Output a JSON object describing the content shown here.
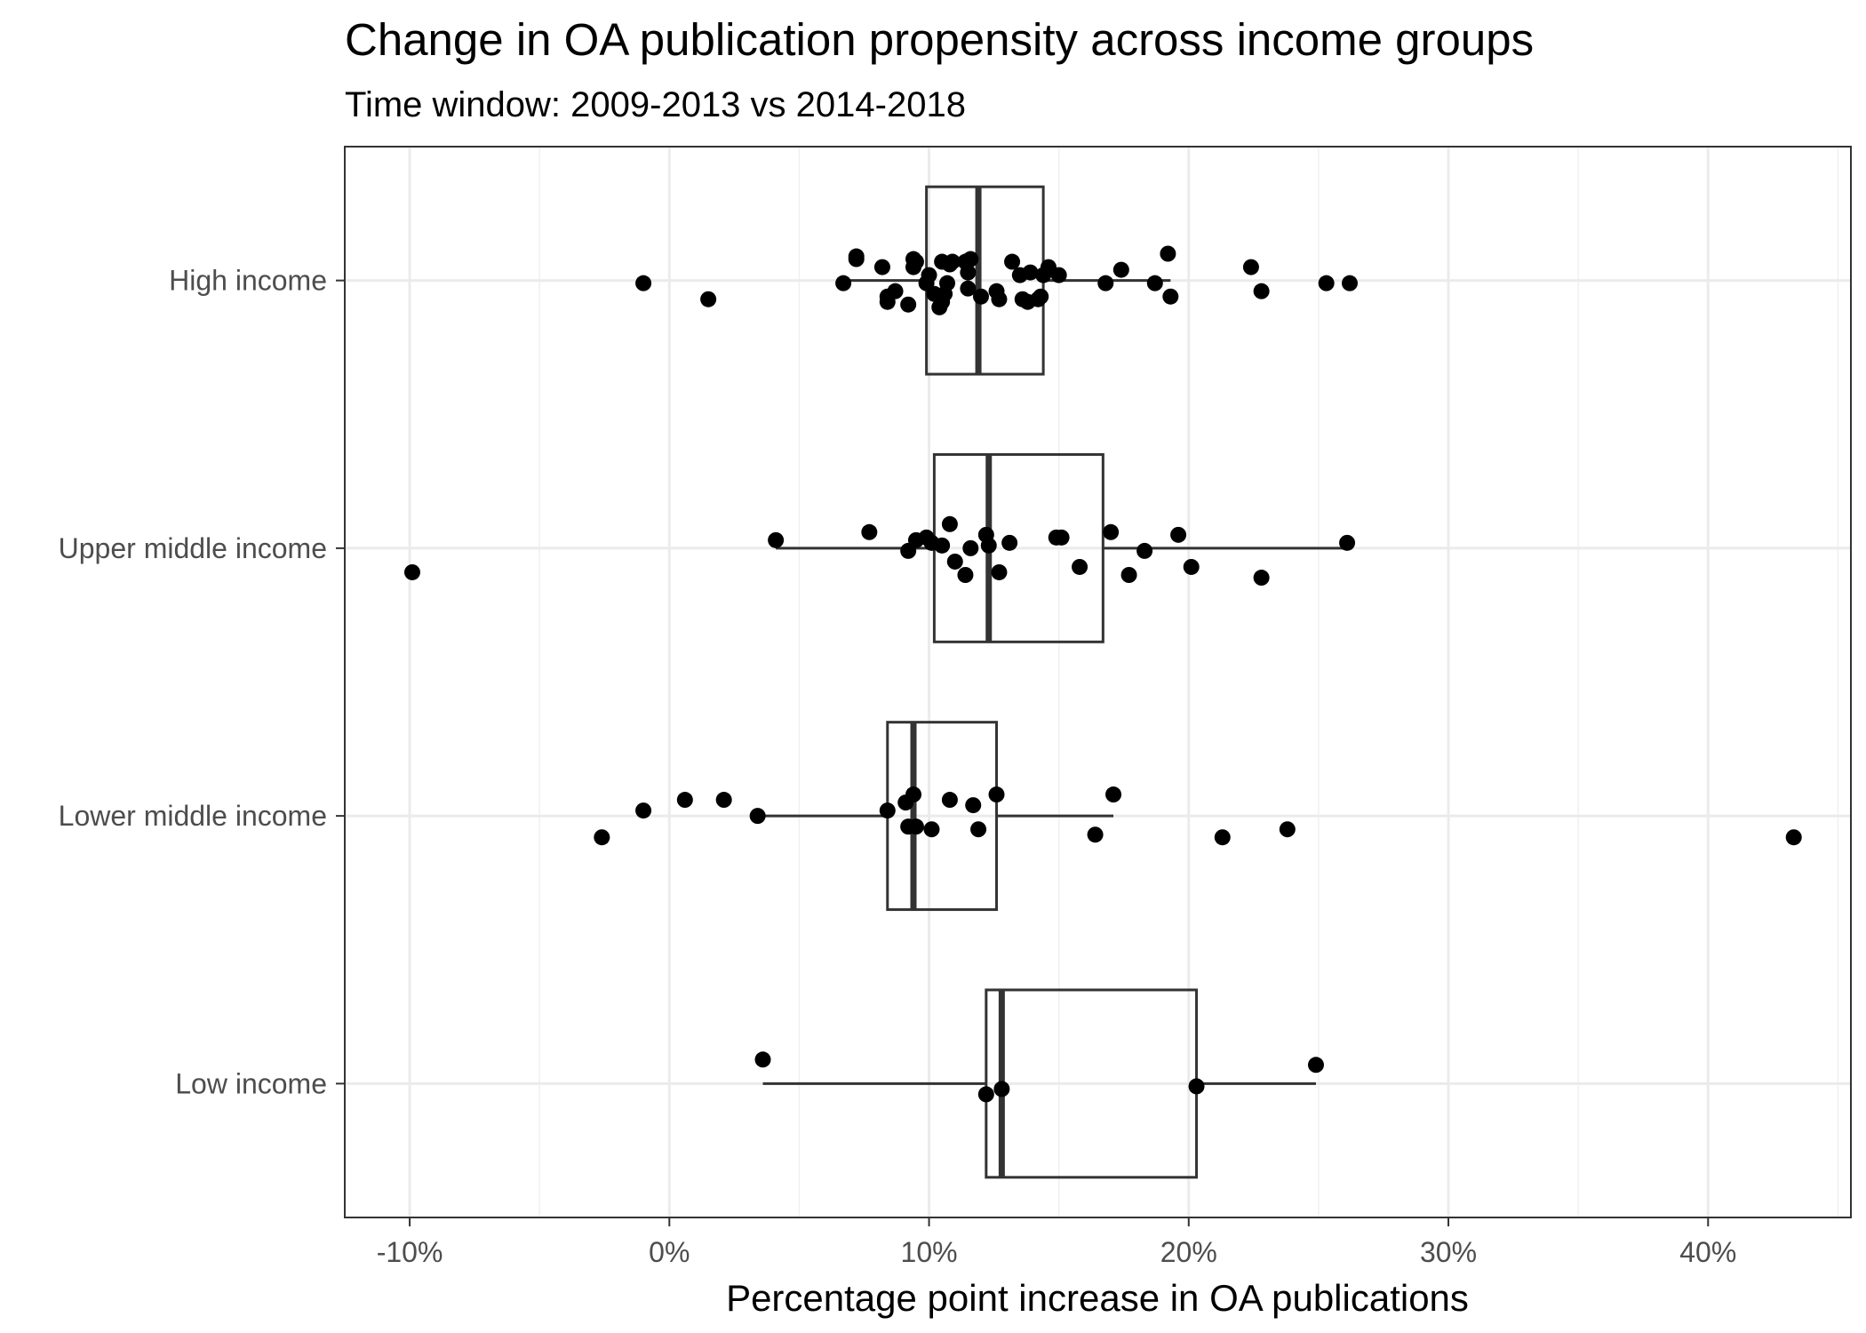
{
  "chart_data": {
    "type": "box",
    "title": "Change in OA publication propensity across income groups",
    "subtitle": "Time window: 2009-2013 vs 2014-2018",
    "xlabel": "Percentage point increase in OA publications",
    "ylabel": "",
    "xlim": [
      -12.5,
      45.5
    ],
    "x_ticks": [
      -10,
      0,
      10,
      20,
      30,
      40
    ],
    "x_tick_labels": [
      "-10%",
      "0%",
      "10%",
      "20%",
      "30%",
      "40%"
    ],
    "grid": true,
    "legend": "none",
    "categories": [
      "High income",
      "Upper middle income",
      "Lower middle income",
      "Low income"
    ],
    "boxes": [
      {
        "category": "High income",
        "whisker_low": 6.7,
        "q1": 9.9,
        "median": 11.9,
        "q3": 14.4,
        "whisker_high": 19.3
      },
      {
        "category": "Upper middle income",
        "whisker_low": 4.1,
        "q1": 10.2,
        "median": 12.3,
        "q3": 16.7,
        "whisker_high": 26.1
      },
      {
        "category": "Lower middle income",
        "whisker_low": 3.4,
        "q1": 8.4,
        "median": 9.4,
        "q3": 12.6,
        "whisker_high": 17.1
      },
      {
        "category": "Low income",
        "whisker_low": 3.6,
        "q1": 12.2,
        "median": 12.8,
        "q3": 20.3,
        "whisker_high": 24.9
      }
    ],
    "points": {
      "High income": [
        -1.0,
        1.5,
        6.7,
        7.2,
        7.2,
        8.2,
        8.4,
        8.4,
        8.7,
        9.2,
        9.4,
        9.4,
        9.5,
        9.9,
        10.0,
        10.2,
        10.4,
        10.5,
        10.5,
        10.6,
        10.7,
        10.8,
        10.9,
        11.4,
        11.5,
        11.5,
        11.6,
        12.0,
        12.6,
        12.7,
        13.2,
        13.5,
        13.6,
        13.8,
        13.9,
        14.2,
        14.3,
        14.4,
        14.6,
        15.0,
        16.8,
        17.4,
        18.7,
        19.2,
        19.3,
        22.4,
        22.8,
        25.3,
        26.2
      ],
      "Upper middle income": [
        -9.9,
        4.1,
        7.7,
        9.2,
        9.5,
        9.9,
        10.1,
        10.5,
        10.8,
        11.0,
        11.4,
        11.6,
        12.2,
        12.3,
        12.7,
        13.1,
        14.9,
        15.1,
        15.8,
        17.0,
        17.7,
        18.3,
        19.6,
        20.1,
        22.8,
        26.1
      ],
      "Lower middle income": [
        -2.6,
        -1.0,
        0.6,
        2.1,
        3.4,
        8.4,
        9.1,
        9.2,
        9.4,
        9.5,
        10.1,
        10.8,
        11.7,
        11.9,
        12.6,
        16.4,
        17.1,
        21.3,
        23.8,
        43.3
      ],
      "Low income": [
        3.6,
        12.2,
        12.8,
        20.3,
        24.9
      ]
    },
    "point_offsets": {
      "High income": [
        0.01,
        0.07,
        0.01,
        -0.08,
        -0.09,
        -0.05,
        0.08,
        0.06,
        0.04,
        0.09,
        -0.05,
        -0.08,
        -0.07,
        0.01,
        -0.02,
        0.05,
        0.1,
        0.08,
        -0.07,
        0.05,
        0.01,
        -0.06,
        -0.07,
        -0.07,
        -0.03,
        0.03,
        -0.08,
        0.06,
        0.04,
        0.07,
        -0.07,
        -0.02,
        0.07,
        0.08,
        -0.03,
        0.07,
        0.06,
        -0.02,
        -0.05,
        -0.02,
        0.01,
        -0.04,
        0.01,
        -0.1,
        0.06,
        -0.05,
        0.04,
        0.01,
        0.01
      ],
      "Upper middle income": [
        0.09,
        -0.03,
        -0.06,
        0.01,
        -0.03,
        -0.04,
        -0.02,
        -0.01,
        -0.09,
        0.05,
        0.1,
        0.0,
        -0.05,
        -0.01,
        0.09,
        -0.02,
        -0.04,
        -0.04,
        0.07,
        -0.06,
        0.1,
        0.01,
        -0.05,
        0.07,
        0.11,
        -0.02
      ],
      "Lower middle income": [
        0.08,
        -0.02,
        -0.06,
        -0.06,
        0.0,
        -0.02,
        -0.05,
        0.04,
        -0.08,
        0.04,
        0.05,
        -0.06,
        -0.04,
        0.05,
        -0.08,
        0.07,
        -0.08,
        0.08,
        0.05,
        0.08
      ],
      "Low income": [
        -0.09,
        0.04,
        0.02,
        0.01,
        -0.07
      ]
    }
  }
}
